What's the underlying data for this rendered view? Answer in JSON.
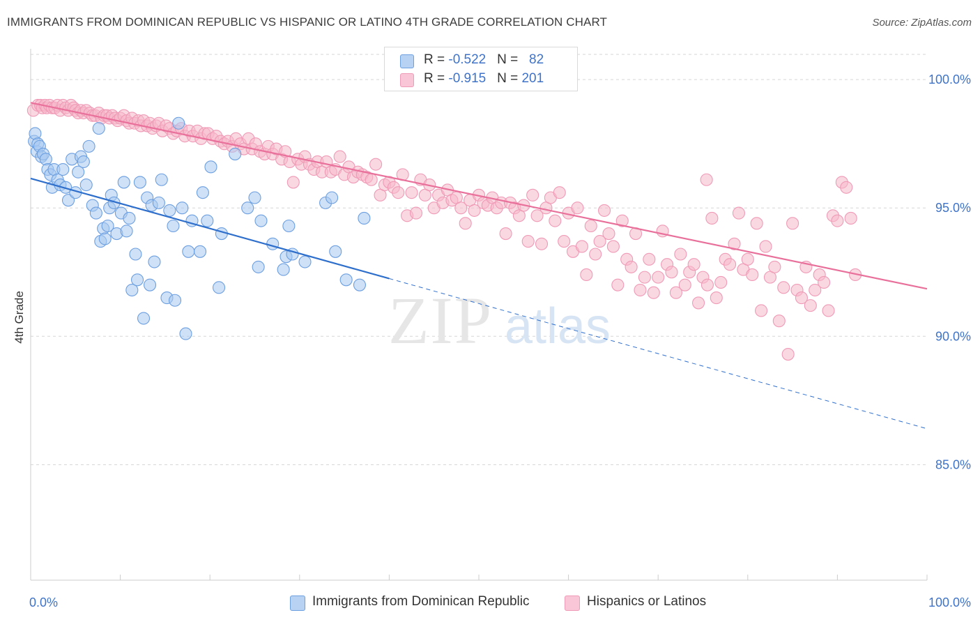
{
  "title": "IMMIGRANTS FROM DOMINICAN REPUBLIC VS HISPANIC OR LATINO 4TH GRADE CORRELATION CHART",
  "source": "Source: ZipAtlas.com",
  "watermark": {
    "zip": "ZIP",
    "atlas": "atlas"
  },
  "legend": {
    "rows": [
      {
        "r_label": "R = ",
        "r_value": "-0.522",
        "n_label": "N = ",
        "n_value": "82"
      },
      {
        "r_label": "R = ",
        "r_value": "-0.915",
        "n_label": "N = ",
        "n_value": "201"
      }
    ]
  },
  "colors": {
    "blue_fill": "#a8c8f0",
    "blue_stroke": "#6c9fe0",
    "blue_line": "#2f6fcc",
    "pink_fill": "#f6b8cb",
    "pink_stroke": "#ef9ab6",
    "pink_line": "#e8709a",
    "tick_label": "#3f73c8",
    "grid": "#d5d5d5"
  },
  "chart_data": {
    "type": "scatter",
    "ylabel": "4th Grade",
    "xlabel": "",
    "xlim": [
      0,
      100
    ],
    "ylim": [
      80.5,
      101.2
    ],
    "x_tick_labels": [
      "0.0%",
      "100.0%"
    ],
    "y_ticks": [
      {
        "value": 100,
        "label": "100.0%"
      },
      {
        "value": 95,
        "label": "95.0%"
      },
      {
        "value": 90,
        "label": "90.0%"
      },
      {
        "value": 85,
        "label": "85.0%"
      }
    ],
    "grid": "horizontal dashed",
    "legend_position": "top-center",
    "series": [
      {
        "name": "Immigrants from Dominican Republic",
        "color": "blue",
        "trend": {
          "x0": 0,
          "y0": 96.15,
          "x1": 100,
          "y1": 86.4,
          "solid_until_x": 40
        },
        "points": [
          [
            0.4,
            97.6
          ],
          [
            0.5,
            97.9
          ],
          [
            0.7,
            97.2
          ],
          [
            0.8,
            97.5
          ],
          [
            1.0,
            97.4
          ],
          [
            1.2,
            97.0
          ],
          [
            1.4,
            97.1
          ],
          [
            1.7,
            96.9
          ],
          [
            1.9,
            96.5
          ],
          [
            2.2,
            96.3
          ],
          [
            2.4,
            95.8
          ],
          [
            2.6,
            96.5
          ],
          [
            3.0,
            96.1
          ],
          [
            3.3,
            95.9
          ],
          [
            3.6,
            96.5
          ],
          [
            3.9,
            95.8
          ],
          [
            4.2,
            95.3
          ],
          [
            4.6,
            96.9
          ],
          [
            5.0,
            95.6
          ],
          [
            5.3,
            96.4
          ],
          [
            5.6,
            97.0
          ],
          [
            5.9,
            96.8
          ],
          [
            6.2,
            95.9
          ],
          [
            6.5,
            97.4
          ],
          [
            6.9,
            95.1
          ],
          [
            7.3,
            94.8
          ],
          [
            7.6,
            98.1
          ],
          [
            7.8,
            93.7
          ],
          [
            8.1,
            94.2
          ],
          [
            8.3,
            93.8
          ],
          [
            8.6,
            94.3
          ],
          [
            8.8,
            95.0
          ],
          [
            9.0,
            95.5
          ],
          [
            9.3,
            95.2
          ],
          [
            9.6,
            94.0
          ],
          [
            10.1,
            94.8
          ],
          [
            10.4,
            96.0
          ],
          [
            10.7,
            94.1
          ],
          [
            11.0,
            94.6
          ],
          [
            11.3,
            91.8
          ],
          [
            11.7,
            93.2
          ],
          [
            11.9,
            92.2
          ],
          [
            12.2,
            96.0
          ],
          [
            12.6,
            90.7
          ],
          [
            13.0,
            95.4
          ],
          [
            13.3,
            92.0
          ],
          [
            13.5,
            95.1
          ],
          [
            13.8,
            92.9
          ],
          [
            14.3,
            95.2
          ],
          [
            14.6,
            96.1
          ],
          [
            15.2,
            91.5
          ],
          [
            15.5,
            94.9
          ],
          [
            15.9,
            94.3
          ],
          [
            16.1,
            91.4
          ],
          [
            16.5,
            98.3
          ],
          [
            16.9,
            95.0
          ],
          [
            17.3,
            90.1
          ],
          [
            17.6,
            93.3
          ],
          [
            18.0,
            94.5
          ],
          [
            18.9,
            93.3
          ],
          [
            19.2,
            95.6
          ],
          [
            19.7,
            94.5
          ],
          [
            20.1,
            96.6
          ],
          [
            21.0,
            91.9
          ],
          [
            21.3,
            94.0
          ],
          [
            22.8,
            97.1
          ],
          [
            24.2,
            95.0
          ],
          [
            25.0,
            95.4
          ],
          [
            25.4,
            92.7
          ],
          [
            25.7,
            94.5
          ],
          [
            27.0,
            93.6
          ],
          [
            28.2,
            92.6
          ],
          [
            28.5,
            93.1
          ],
          [
            28.8,
            94.3
          ],
          [
            29.2,
            93.2
          ],
          [
            30.6,
            92.9
          ],
          [
            32.9,
            95.2
          ],
          [
            33.6,
            95.4
          ],
          [
            34.0,
            93.3
          ],
          [
            35.2,
            92.2
          ],
          [
            36.7,
            92.0
          ],
          [
            37.2,
            94.6
          ]
        ]
      },
      {
        "name": "Hispanics or Latinos",
        "color": "pink",
        "trend": {
          "x0": 0,
          "y0": 99.1,
          "x1": 100,
          "y1": 91.85,
          "solid_until_x": 100
        },
        "points": [
          [
            0.3,
            98.8
          ],
          [
            0.8,
            99.0
          ],
          [
            1.1,
            99.0
          ],
          [
            1.3,
            98.9
          ],
          [
            1.6,
            99.0
          ],
          [
            1.8,
            98.9
          ],
          [
            2.1,
            99.0
          ],
          [
            2.4,
            98.9
          ],
          [
            2.7,
            98.9
          ],
          [
            3.0,
            99.0
          ],
          [
            3.3,
            98.8
          ],
          [
            3.6,
            99.0
          ],
          [
            3.9,
            98.9
          ],
          [
            4.2,
            98.8
          ],
          [
            4.5,
            99.0
          ],
          [
            4.8,
            98.9
          ],
          [
            5.0,
            98.8
          ],
          [
            5.3,
            98.7
          ],
          [
            5.6,
            98.8
          ],
          [
            5.9,
            98.7
          ],
          [
            6.2,
            98.8
          ],
          [
            6.6,
            98.7
          ],
          [
            6.9,
            98.6
          ],
          [
            7.2,
            98.6
          ],
          [
            7.6,
            98.7
          ],
          [
            7.9,
            98.5
          ],
          [
            8.2,
            98.6
          ],
          [
            8.5,
            98.6
          ],
          [
            8.8,
            98.5
          ],
          [
            9.1,
            98.6
          ],
          [
            9.4,
            98.5
          ],
          [
            9.7,
            98.4
          ],
          [
            10.0,
            98.5
          ],
          [
            10.4,
            98.6
          ],
          [
            10.7,
            98.4
          ],
          [
            11.0,
            98.3
          ],
          [
            11.3,
            98.5
          ],
          [
            11.6,
            98.3
          ],
          [
            12.0,
            98.4
          ],
          [
            12.3,
            98.2
          ],
          [
            12.6,
            98.4
          ],
          [
            13.0,
            98.2
          ],
          [
            13.3,
            98.3
          ],
          [
            13.6,
            98.1
          ],
          [
            14.0,
            98.2
          ],
          [
            14.3,
            98.3
          ],
          [
            14.7,
            98.0
          ],
          [
            15.1,
            98.2
          ],
          [
            15.5,
            98.1
          ],
          [
            15.9,
            97.9
          ],
          [
            16.3,
            98.0
          ],
          [
            16.8,
            98.1
          ],
          [
            17.2,
            97.8
          ],
          [
            17.7,
            98.0
          ],
          [
            18.1,
            97.8
          ],
          [
            18.6,
            98.0
          ],
          [
            19.0,
            97.7
          ],
          [
            19.4,
            97.9
          ],
          [
            19.8,
            97.9
          ],
          [
            20.3,
            97.7
          ],
          [
            20.7,
            97.8
          ],
          [
            21.2,
            97.6
          ],
          [
            21.6,
            97.5
          ],
          [
            22.0,
            97.6
          ],
          [
            22.5,
            97.4
          ],
          [
            22.9,
            97.7
          ],
          [
            23.4,
            97.5
          ],
          [
            23.8,
            97.3
          ],
          [
            24.3,
            97.7
          ],
          [
            24.7,
            97.3
          ],
          [
            25.1,
            97.5
          ],
          [
            25.6,
            97.2
          ],
          [
            26.1,
            97.1
          ],
          [
            26.5,
            97.4
          ],
          [
            27.0,
            97.1
          ],
          [
            27.4,
            97.3
          ],
          [
            28.0,
            96.9
          ],
          [
            28.4,
            97.2
          ],
          [
            28.9,
            96.8
          ],
          [
            29.3,
            96.0
          ],
          [
            29.8,
            96.9
          ],
          [
            30.2,
            96.7
          ],
          [
            30.6,
            97.0
          ],
          [
            31.1,
            96.7
          ],
          [
            31.6,
            96.5
          ],
          [
            32.0,
            96.8
          ],
          [
            32.5,
            96.4
          ],
          [
            33.0,
            96.8
          ],
          [
            33.5,
            96.4
          ],
          [
            34.0,
            96.5
          ],
          [
            34.5,
            97.0
          ],
          [
            35.0,
            96.3
          ],
          [
            35.5,
            96.6
          ],
          [
            36.0,
            96.2
          ],
          [
            36.5,
            96.4
          ],
          [
            37.0,
            96.3
          ],
          [
            37.5,
            96.2
          ],
          [
            38.0,
            96.1
          ],
          [
            38.5,
            96.7
          ],
          [
            39.0,
            95.5
          ],
          [
            39.5,
            95.9
          ],
          [
            40.0,
            96.0
          ],
          [
            40.5,
            95.8
          ],
          [
            41.0,
            95.6
          ],
          [
            41.5,
            96.3
          ],
          [
            42.0,
            94.7
          ],
          [
            42.5,
            95.6
          ],
          [
            43.0,
            94.8
          ],
          [
            43.5,
            96.1
          ],
          [
            44.0,
            95.5
          ],
          [
            44.5,
            95.9
          ],
          [
            45.0,
            95.0
          ],
          [
            45.5,
            95.5
          ],
          [
            46.0,
            95.2
          ],
          [
            46.5,
            95.7
          ],
          [
            47.0,
            95.3
          ],
          [
            47.5,
            95.4
          ],
          [
            48.0,
            95.0
          ],
          [
            48.5,
            94.4
          ],
          [
            49.0,
            95.3
          ],
          [
            49.5,
            94.9
          ],
          [
            50.0,
            95.5
          ],
          [
            50.5,
            95.2
          ],
          [
            51.0,
            95.1
          ],
          [
            51.5,
            95.4
          ],
          [
            52.0,
            95.0
          ],
          [
            52.5,
            95.2
          ],
          [
            53.0,
            94.0
          ],
          [
            53.5,
            95.2
          ],
          [
            54.0,
            95.0
          ],
          [
            54.5,
            94.7
          ],
          [
            55.0,
            95.1
          ],
          [
            55.5,
            93.7
          ],
          [
            56.0,
            95.5
          ],
          [
            56.5,
            94.7
          ],
          [
            57.0,
            93.6
          ],
          [
            57.5,
            95.0
          ],
          [
            58.0,
            95.4
          ],
          [
            58.5,
            94.5
          ],
          [
            59.0,
            95.6
          ],
          [
            59.5,
            93.7
          ],
          [
            60.0,
            94.8
          ],
          [
            60.5,
            93.3
          ],
          [
            61.0,
            95.0
          ],
          [
            61.5,
            93.5
          ],
          [
            62.0,
            92.4
          ],
          [
            62.5,
            94.3
          ],
          [
            63.0,
            93.2
          ],
          [
            63.5,
            93.7
          ],
          [
            64.0,
            94.9
          ],
          [
            64.5,
            94.0
          ],
          [
            65.0,
            93.5
          ],
          [
            65.5,
            92.0
          ],
          [
            66.0,
            94.5
          ],
          [
            66.5,
            93.0
          ],
          [
            67.0,
            92.7
          ],
          [
            67.5,
            94.0
          ],
          [
            68.0,
            91.8
          ],
          [
            68.5,
            92.3
          ],
          [
            69.0,
            93.0
          ],
          [
            69.5,
            91.7
          ],
          [
            70.0,
            92.3
          ],
          [
            70.5,
            94.1
          ],
          [
            71.0,
            92.8
          ],
          [
            71.5,
            92.5
          ],
          [
            72.0,
            91.7
          ],
          [
            72.5,
            93.2
          ],
          [
            73.0,
            92.0
          ],
          [
            73.5,
            92.5
          ],
          [
            74.0,
            92.8
          ],
          [
            74.5,
            91.3
          ],
          [
            75.0,
            92.3
          ],
          [
            75.5,
            92.0
          ],
          [
            76.0,
            94.6
          ],
          [
            76.5,
            91.5
          ],
          [
            77.0,
            92.1
          ],
          [
            77.5,
            93.0
          ],
          [
            78.0,
            92.8
          ],
          [
            78.5,
            93.6
          ],
          [
            79.0,
            94.8
          ],
          [
            79.5,
            92.6
          ],
          [
            80.0,
            93.0
          ],
          [
            80.5,
            92.4
          ],
          [
            81.0,
            94.4
          ],
          [
            81.5,
            91.0
          ],
          [
            82.0,
            93.5
          ],
          [
            82.5,
            92.3
          ],
          [
            83.0,
            92.7
          ],
          [
            83.5,
            90.6
          ],
          [
            84.0,
            91.9
          ],
          [
            84.5,
            89.3
          ],
          [
            85.0,
            94.4
          ],
          [
            85.5,
            91.8
          ],
          [
            86.0,
            91.5
          ],
          [
            86.5,
            92.7
          ],
          [
            87.0,
            91.2
          ],
          [
            87.5,
            91.8
          ],
          [
            88.0,
            92.4
          ],
          [
            88.5,
            92.1
          ],
          [
            89.0,
            91.0
          ],
          [
            89.5,
            94.7
          ],
          [
            90.0,
            94.5
          ],
          [
            90.5,
            96.0
          ],
          [
            91.0,
            95.8
          ],
          [
            91.5,
            94.6
          ],
          [
            92.0,
            92.4
          ],
          [
            75.4,
            96.1
          ]
        ]
      }
    ]
  },
  "bottom_legend": [
    "Immigrants from Dominican Republic",
    "Hispanics or Latinos"
  ]
}
